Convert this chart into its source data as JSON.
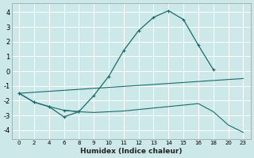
{
  "xlabel": "Humidex (Indice chaleur)",
  "background_color": "#cce8e8",
  "grid_color": "#ffffff",
  "line_color": "#1a6b6b",
  "xtick_labels": [
    "0",
    "2",
    "4",
    "6",
    "8",
    "9",
    "10",
    "11",
    "12",
    "13",
    "14",
    "15",
    "16",
    "18",
    "20",
    "23"
  ],
  "yticks": [
    -4,
    -3,
    -2,
    -1,
    0,
    1,
    2,
    3,
    4
  ],
  "ylim": [
    -4.6,
    4.6
  ],
  "line1": {
    "x": [
      0,
      1,
      2,
      3,
      4,
      5,
      6,
      7,
      8,
      9,
      10,
      11,
      12,
      13
    ],
    "y": [
      -1.5,
      -2.1,
      -2.4,
      -3.1,
      -2.75,
      -1.65,
      -0.35,
      1.4,
      2.75,
      3.65,
      4.1,
      3.5,
      1.75,
      0.1
    ]
  },
  "line2": {
    "x": [
      0,
      15
    ],
    "y": [
      -1.5,
      -0.5
    ]
  },
  "line3": {
    "x": [
      0,
      1,
      2,
      3,
      4
    ],
    "y": [
      -1.5,
      -2.1,
      -2.4,
      -2.65,
      -2.75
    ]
  },
  "line4": {
    "x": [
      3,
      4,
      5,
      6,
      7,
      8,
      9,
      10,
      11,
      12,
      13,
      14,
      15
    ],
    "y": [
      -2.65,
      -2.75,
      -2.8,
      -2.75,
      -2.7,
      -2.6,
      -2.5,
      -2.4,
      -2.3,
      -2.2,
      -2.75,
      -3.65,
      -4.15
    ]
  }
}
